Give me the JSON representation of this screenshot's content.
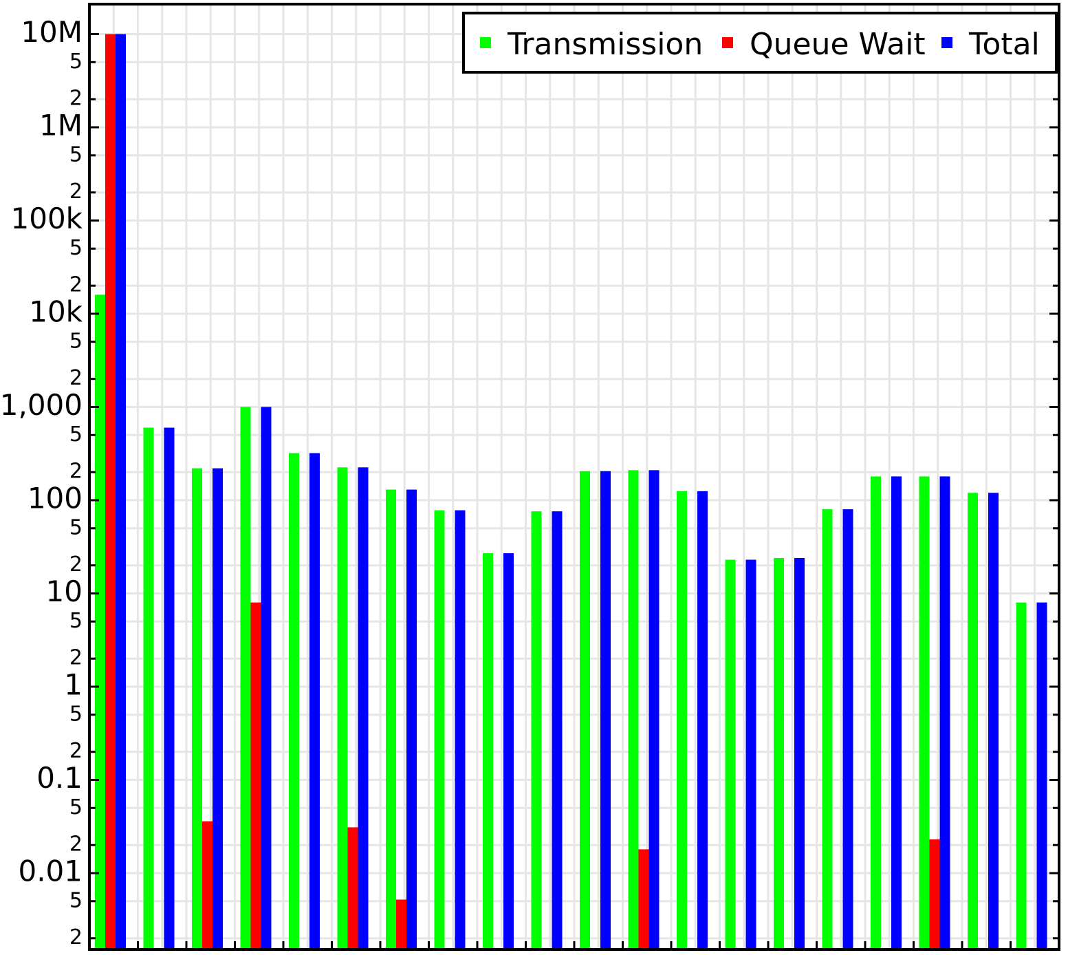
{
  "chart_data": {
    "type": "bar",
    "title": "",
    "xlabel": "",
    "ylabel": "",
    "yscale": "log",
    "ylim": [
      0.0017,
      20000000
    ],
    "grid": true,
    "legend_position": "top-right",
    "colors": {
      "Transmission": "#00ff00",
      "Queue Wait": "#ff0000",
      "Total": "#0000ff"
    },
    "y_major_ticks": [
      {
        "value": 10000000,
        "label": "10M"
      },
      {
        "value": 1000000,
        "label": "1M"
      },
      {
        "value": 100000,
        "label": "100k"
      },
      {
        "value": 10000,
        "label": "10k"
      },
      {
        "value": 1000,
        "label": "1,000"
      },
      {
        "value": 100,
        "label": "100"
      },
      {
        "value": 10,
        "label": "10"
      },
      {
        "value": 1,
        "label": "1"
      },
      {
        "value": 0.1,
        "label": "0.1"
      },
      {
        "value": 0.01,
        "label": "0.01"
      }
    ],
    "y_minor_ticks": [
      {
        "value": 5000000,
        "label": "5"
      },
      {
        "value": 2000000,
        "label": "2"
      },
      {
        "value": 500000,
        "label": "5"
      },
      {
        "value": 200000,
        "label": "2"
      },
      {
        "value": 50000,
        "label": "5"
      },
      {
        "value": 20000,
        "label": "2"
      },
      {
        "value": 5000,
        "label": "5"
      },
      {
        "value": 2000,
        "label": "2"
      },
      {
        "value": 500,
        "label": "5"
      },
      {
        "value": 200,
        "label": "2"
      },
      {
        "value": 50,
        "label": "5"
      },
      {
        "value": 20,
        "label": "2"
      },
      {
        "value": 5,
        "label": "5"
      },
      {
        "value": 2,
        "label": "2"
      },
      {
        "value": 0.5,
        "label": "5"
      },
      {
        "value": 0.2,
        "label": "2"
      },
      {
        "value": 0.05,
        "label": "5"
      },
      {
        "value": 0.02,
        "label": "2"
      },
      {
        "value": 0.005,
        "label": "5"
      },
      {
        "value": 0.002,
        "label": "2"
      }
    ],
    "series": [
      {
        "name": "Transmission",
        "values": [
          16000,
          600,
          220,
          1000,
          320,
          225,
          130,
          78,
          27,
          76,
          205,
          210,
          125,
          23,
          24,
          80,
          180,
          180,
          120,
          8
        ]
      },
      {
        "name": "Queue Wait",
        "values": [
          10000000,
          null,
          0.036,
          8,
          null,
          0.031,
          0.0052,
          null,
          null,
          null,
          null,
          0.018,
          null,
          null,
          null,
          null,
          null,
          0.023,
          null,
          null
        ]
      },
      {
        "name": "Total",
        "values": [
          10000000,
          600,
          220,
          1000,
          320,
          225,
          130,
          78,
          27,
          76,
          205,
          210,
          125,
          23,
          24,
          80,
          180,
          180,
          120,
          8
        ]
      }
    ]
  }
}
